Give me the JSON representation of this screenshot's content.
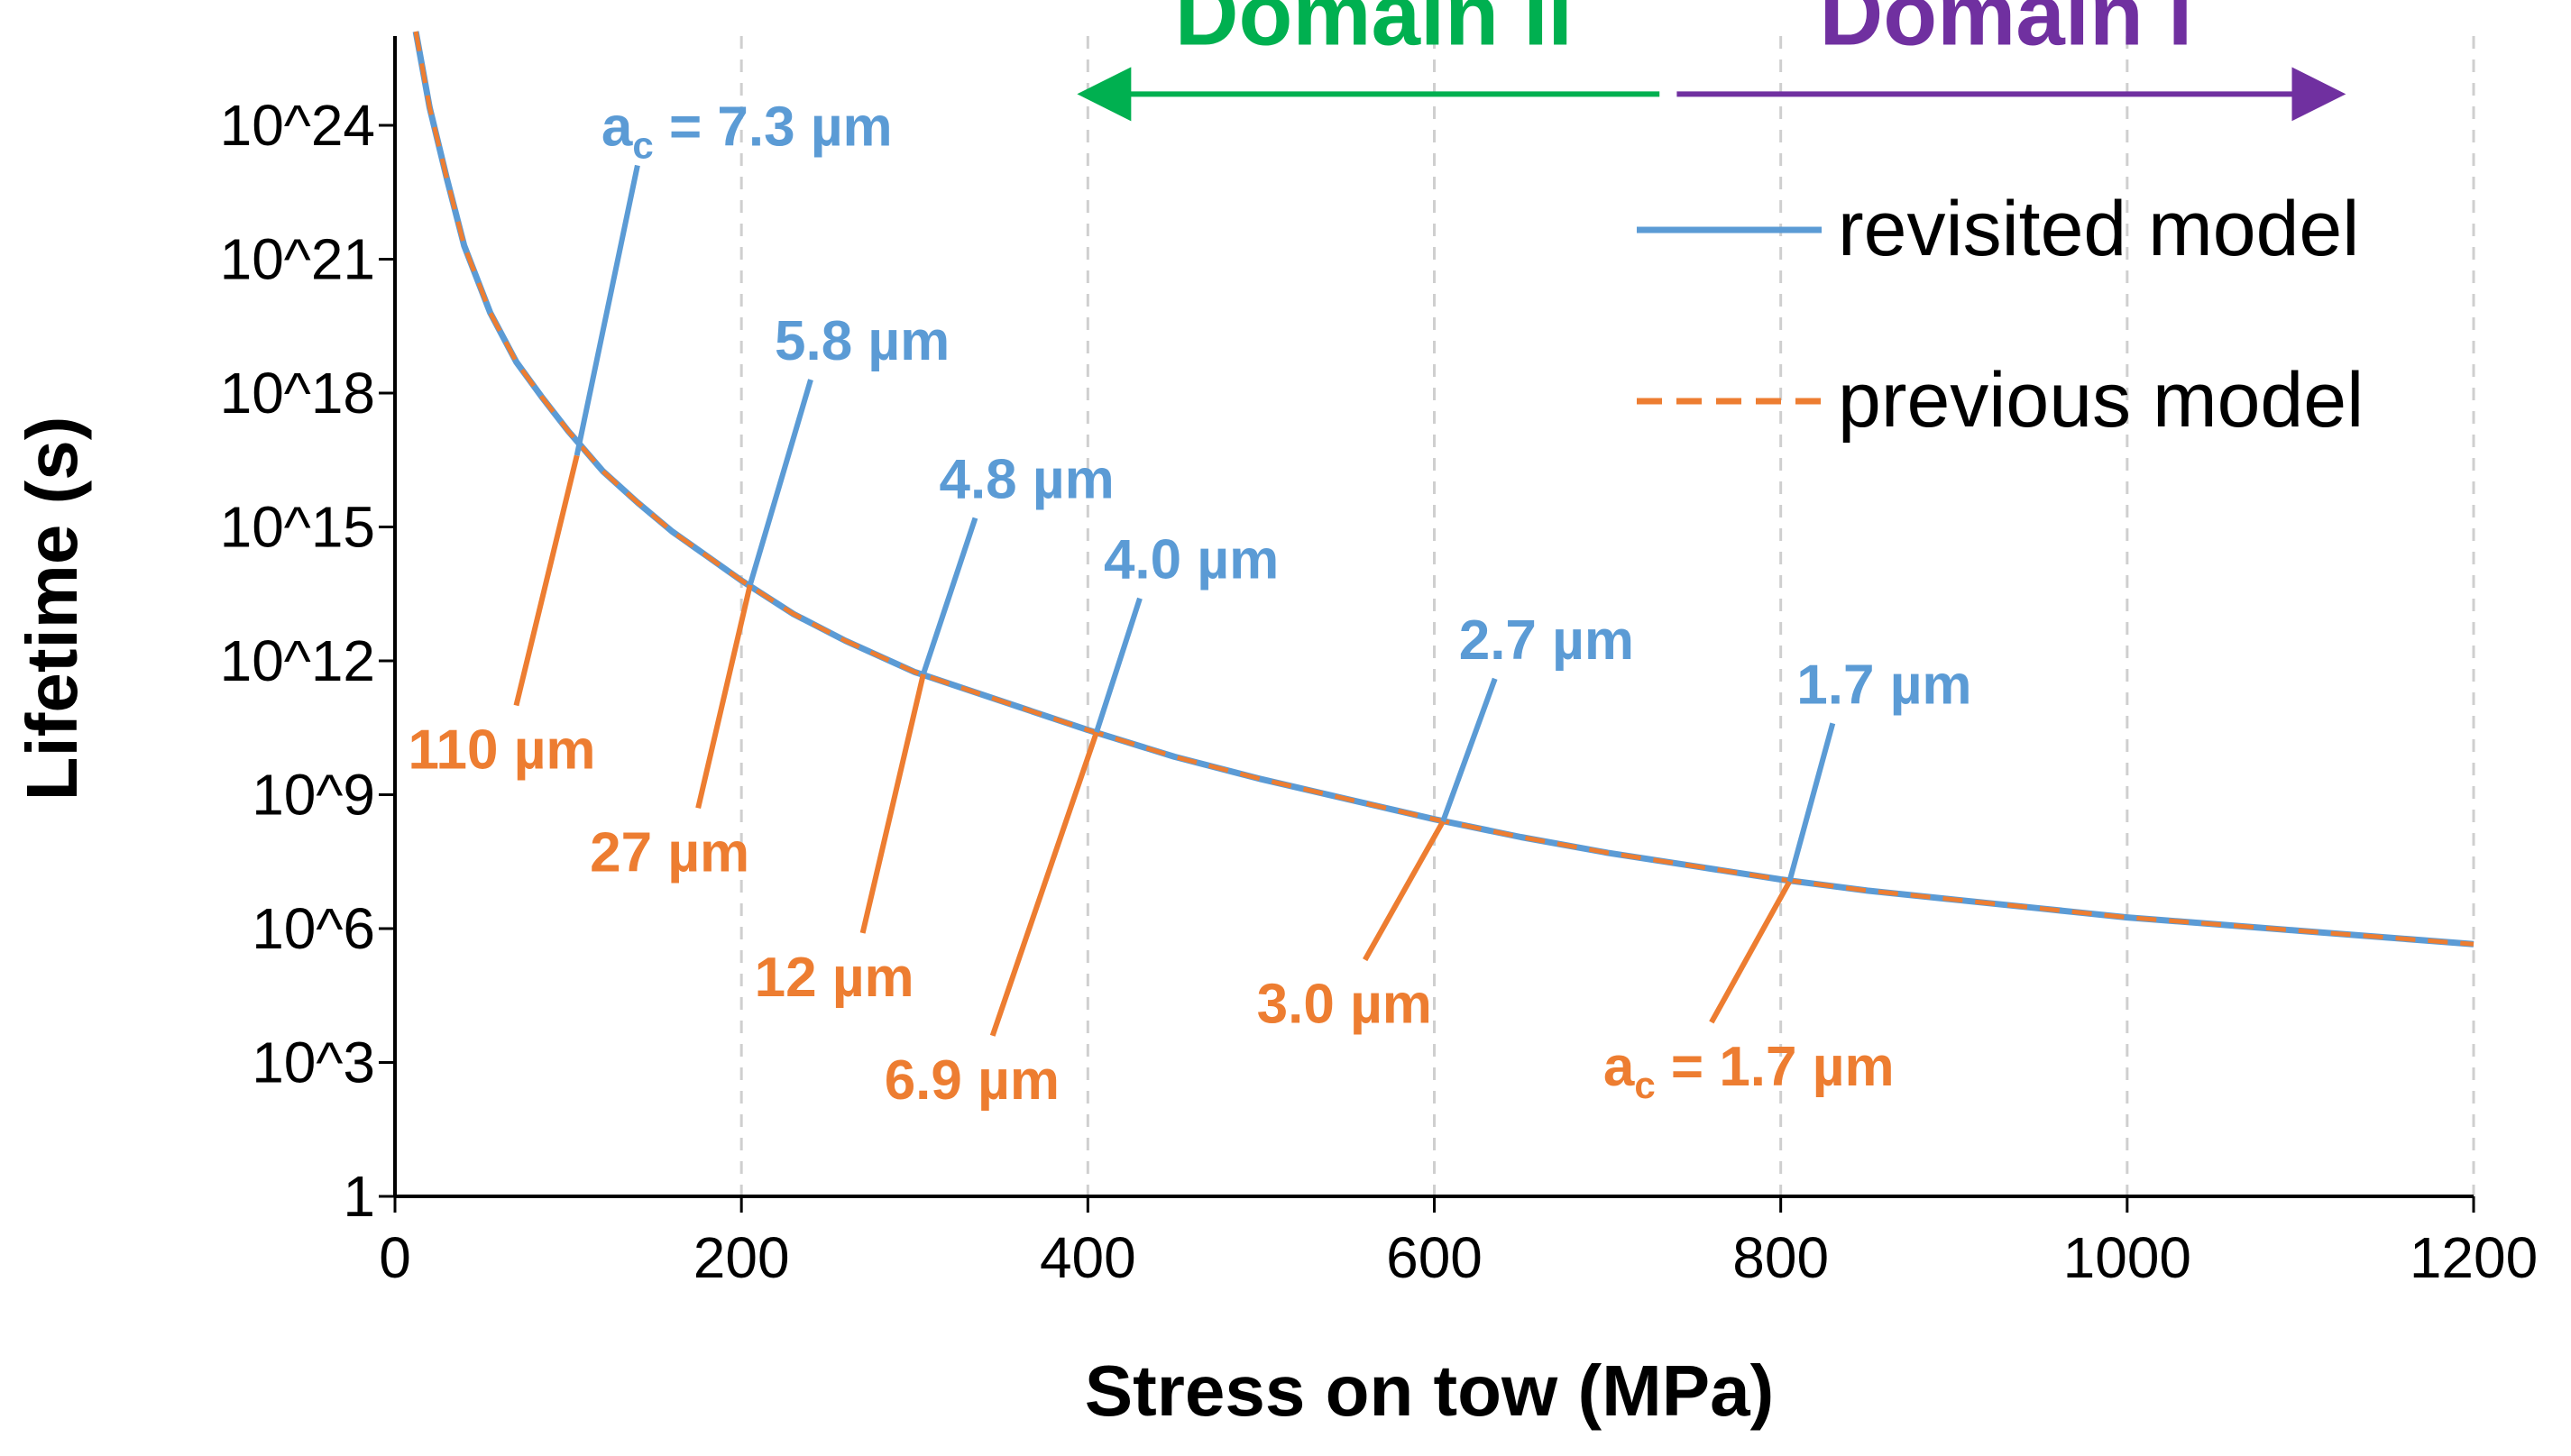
{
  "chart_data": {
    "type": "line",
    "title": "",
    "xlabel": "Stress on tow (MPa)",
    "ylabel": "Lifetime (s)",
    "xlim": [
      0,
      1200
    ],
    "ylim_log10": [
      0,
      26
    ],
    "x_ticks": [
      0,
      200,
      400,
      600,
      800,
      1000,
      1200
    ],
    "x_tick_labels": [
      "0",
      "200",
      "400",
      "600",
      "800",
      "1000",
      "1200"
    ],
    "y_ticks_log10": [
      0,
      3,
      6,
      9,
      12,
      15,
      18,
      21,
      24
    ],
    "y_tick_labels": [
      "1",
      "10^3",
      "10^6",
      "10^9",
      "10^12",
      "10^15",
      "10^18",
      "10^21",
      "10^24"
    ],
    "grid": "vertical dashed at x ticks",
    "series": [
      {
        "name": "revisited model",
        "color": "#5b9bd5",
        "style": "solid",
        "x": [
          12,
          20,
          30,
          40,
          55,
          70,
          85,
          100,
          120,
          140,
          160,
          180,
          200,
          230,
          260,
          300,
          350,
          400,
          450,
          500,
          550,
          600,
          650,
          700,
          750,
          800,
          850,
          900,
          950,
          1000,
          1050,
          1100,
          1150,
          1200
        ],
        "y_log10": [
          26.1,
          24.4,
          22.8,
          21.3,
          19.8,
          18.7,
          17.9,
          17.15,
          16.25,
          15.55,
          14.9,
          14.35,
          13.8,
          13.05,
          12.45,
          11.75,
          11.1,
          10.45,
          9.85,
          9.35,
          8.9,
          8.45,
          8.05,
          7.7,
          7.4,
          7.1,
          6.85,
          6.65,
          6.45,
          6.25,
          6.1,
          5.95,
          5.8,
          5.65
        ]
      },
      {
        "name": "previous model",
        "color": "#ed7d31",
        "style": "dashed",
        "x": [
          12,
          20,
          30,
          40,
          55,
          70,
          85,
          100,
          120,
          140,
          160,
          180,
          200,
          230,
          260,
          300,
          350,
          400,
          450,
          500,
          550,
          600,
          650,
          700,
          750,
          800,
          850,
          900,
          950,
          1000,
          1050,
          1100,
          1150,
          1200
        ],
        "y_log10": [
          26.1,
          24.4,
          22.8,
          21.3,
          19.8,
          18.7,
          17.9,
          17.15,
          16.25,
          15.55,
          14.9,
          14.35,
          13.8,
          13.05,
          12.45,
          11.75,
          11.1,
          10.45,
          9.85,
          9.35,
          8.9,
          8.45,
          8.05,
          7.7,
          7.4,
          7.1,
          6.85,
          6.65,
          6.45,
          6.25,
          6.1,
          5.95,
          5.8,
          5.65
        ]
      }
    ],
    "revisited_annotations": [
      {
        "label": "a",
        "subscript": "c",
        "value": " = 7.3 µm",
        "at_x": 105,
        "at_y_log10": 16.6,
        "to_x": 140,
        "to_y_log10": 23.1
      },
      {
        "label": "",
        "subscript": "",
        "value": "5.8 µm",
        "at_x": 205,
        "at_y_log10": 13.7,
        "to_x": 240,
        "to_y_log10": 18.3
      },
      {
        "label": "",
        "subscript": "",
        "value": "4.8 µm",
        "at_x": 305,
        "at_y_log10": 11.7,
        "to_x": 335,
        "to_y_log10": 15.2
      },
      {
        "label": "",
        "subscript": "",
        "value": "4.0 µm",
        "at_x": 405,
        "at_y_log10": 10.4,
        "to_x": 430,
        "to_y_log10": 13.4
      },
      {
        "label": "",
        "subscript": "",
        "value": "2.7 µm",
        "at_x": 605,
        "at_y_log10": 8.4,
        "to_x": 635,
        "to_y_log10": 11.6
      },
      {
        "label": "",
        "subscript": "",
        "value": "1.7 µm",
        "at_x": 805,
        "at_y_log10": 7.05,
        "to_x": 830,
        "to_y_log10": 10.6
      }
    ],
    "previous_annotations": [
      {
        "label": "",
        "subscript": "",
        "value": "110 µm",
        "at_x": 105,
        "at_y_log10": 16.6,
        "to_x": 70,
        "to_y_log10": 11.0
      },
      {
        "label": "",
        "subscript": "",
        "value": "27 µm",
        "at_x": 205,
        "at_y_log10": 13.7,
        "to_x": 175,
        "to_y_log10": 8.7
      },
      {
        "label": "",
        "subscript": "",
        "value": "12 µm",
        "at_x": 305,
        "at_y_log10": 11.7,
        "to_x": 270,
        "to_y_log10": 5.9
      },
      {
        "label": "",
        "subscript": "",
        "value": "6.9 µm",
        "at_x": 405,
        "at_y_log10": 10.4,
        "to_x": 345,
        "to_y_log10": 3.6
      },
      {
        "label": "",
        "subscript": "",
        "value": "3.0 µm",
        "at_x": 605,
        "at_y_log10": 8.4,
        "to_x": 560,
        "to_y_log10": 5.3
      },
      {
        "label": "a",
        "subscript": "c",
        "value": " = 1.7 µm",
        "at_x": 805,
        "at_y_log10": 7.05,
        "to_x": 760,
        "to_y_log10": 3.9
      }
    ],
    "domains": [
      {
        "label": "Domain II",
        "color": "#00b050",
        "arrow_from_x": 730,
        "arrow_to_x": 400,
        "at_y_log10": 24.7
      },
      {
        "label": "Domain I",
        "color": "#7030a0",
        "arrow_from_x": 740,
        "arrow_to_x": 1120,
        "at_y_log10": 24.7
      }
    ],
    "legend": {
      "position": "top-right",
      "entries": [
        {
          "label": "revisited model",
          "color": "#5b9bd5",
          "style": "solid"
        },
        {
          "label": "previous model",
          "color": "#ed7d31",
          "style": "dashed"
        }
      ]
    }
  }
}
